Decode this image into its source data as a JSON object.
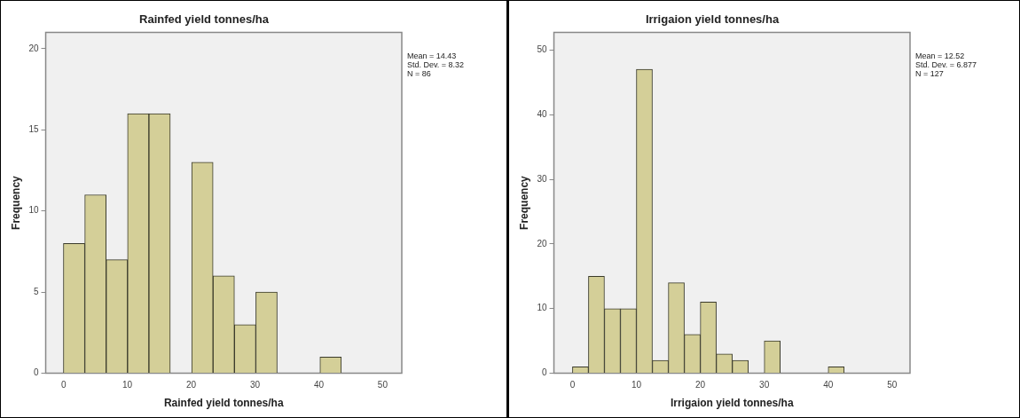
{
  "chart_data": [
    {
      "type": "histogram",
      "title": "Rainfed yield tonnes/ha",
      "xlabel": "Rainfed yield tonnes/ha",
      "ylabel": "Frequency",
      "bins": [
        0,
        3.3,
        6.7,
        10,
        13.4,
        16.7,
        20.1,
        23.4,
        26.8,
        30.1,
        33.5,
        36.8,
        40.2,
        43.5
      ],
      "values": [
        8,
        11,
        7,
        16,
        16,
        0,
        13,
        6,
        3,
        5,
        0,
        0,
        1
      ],
      "color": "#d4cf98",
      "xlim": [
        -2.8,
        53
      ],
      "xticks": [
        0,
        10,
        20,
        30,
        40,
        50
      ],
      "ylim": [
        0,
        21
      ],
      "yticks": [
        0,
        5,
        10,
        15,
        20
      ],
      "annotations": [
        "Mean = 14.43",
        "Std. Dev. = 8.32",
        "N = 86"
      ],
      "grid": false,
      "legend": false
    },
    {
      "type": "histogram",
      "title": "Irrigaion yield tonnes/ha",
      "xlabel": "Irrigaion yield tonnes/ha",
      "ylabel": "Frequency",
      "bins": [
        0,
        2.5,
        5,
        7.5,
        10,
        12.5,
        15,
        17.5,
        20,
        22.5,
        25,
        27.5,
        30,
        32.5,
        35,
        37.5,
        40,
        42.5
      ],
      "values": [
        1,
        15,
        10,
        10,
        47,
        2,
        14,
        6,
        11,
        3,
        2,
        0,
        5,
        0,
        0,
        0,
        1
      ],
      "color": "#d4cf98",
      "xlim": [
        -2.9,
        52.8
      ],
      "xticks": [
        0,
        10,
        20,
        30,
        40,
        50
      ],
      "ylim": [
        0,
        52.7
      ],
      "yticks": [
        0,
        10,
        20,
        30,
        40,
        50
      ],
      "annotations": [
        "Mean = 12.52",
        "Std. Dev. = 6.877",
        "N = 127"
      ],
      "grid": false,
      "legend": false
    }
  ]
}
